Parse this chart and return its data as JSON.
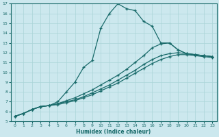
{
  "xlabel": "Humidex (Indice chaleur)",
  "bg_color": "#cce8ee",
  "line_color": "#1a6b6b",
  "grid_color": "#aad4d8",
  "xlim": [
    -0.5,
    23.5
  ],
  "ylim": [
    5,
    17
  ],
  "xticks": [
    0,
    1,
    2,
    3,
    4,
    5,
    6,
    7,
    8,
    9,
    10,
    11,
    12,
    13,
    14,
    15,
    16,
    17,
    18,
    19,
    20,
    21,
    22,
    23
  ],
  "yticks": [
    5,
    6,
    7,
    8,
    9,
    10,
    11,
    12,
    13,
    14,
    15,
    16,
    17
  ],
  "lines": [
    {
      "x": [
        0,
        1,
        2,
        3,
        4,
        5,
        6,
        7,
        8,
        9,
        10,
        11,
        12,
        13,
        14,
        15,
        16,
        17,
        18,
        19,
        20,
        21,
        22,
        23
      ],
      "y": [
        5.5,
        5.8,
        6.2,
        6.5,
        6.6,
        7.0,
        8.0,
        9.0,
        10.5,
        11.2,
        14.5,
        16.0,
        17.0,
        16.5,
        16.3,
        15.2,
        14.7,
        13.0,
        13.0,
        12.3,
        11.9,
        11.8,
        11.7,
        11.6
      ]
    },
    {
      "x": [
        0,
        1,
        2,
        3,
        4,
        5,
        6,
        7,
        8,
        9,
        10,
        11,
        12,
        13,
        14,
        15,
        16,
        17,
        18,
        19,
        20,
        21,
        22,
        23
      ],
      "y": [
        5.5,
        5.8,
        6.2,
        6.5,
        6.6,
        6.8,
        7.1,
        7.4,
        7.8,
        8.2,
        8.7,
        9.2,
        9.7,
        10.3,
        11.0,
        11.7,
        12.5,
        12.9,
        13.0,
        12.3,
        11.9,
        11.8,
        11.7,
        11.6
      ]
    },
    {
      "x": [
        0,
        1,
        2,
        3,
        4,
        5,
        6,
        7,
        8,
        9,
        10,
        11,
        12,
        13,
        14,
        15,
        16,
        17,
        18,
        19,
        20,
        21,
        22,
        23
      ],
      "y": [
        5.5,
        5.8,
        6.2,
        6.5,
        6.6,
        6.8,
        7.0,
        7.2,
        7.5,
        7.9,
        8.3,
        8.7,
        9.2,
        9.7,
        10.2,
        10.8,
        11.3,
        11.7,
        11.9,
        12.0,
        11.9,
        11.8,
        11.7,
        11.6
      ]
    },
    {
      "x": [
        0,
        1,
        2,
        3,
        4,
        5,
        6,
        7,
        8,
        9,
        10,
        11,
        12,
        13,
        14,
        15,
        16,
        17,
        18,
        19,
        20,
        21,
        22,
        23
      ],
      "y": [
        5.5,
        5.8,
        6.2,
        6.5,
        6.6,
        6.7,
        6.9,
        7.1,
        7.4,
        7.7,
        8.1,
        8.5,
        8.9,
        9.4,
        9.9,
        10.4,
        10.9,
        11.3,
        11.6,
        11.8,
        11.8,
        11.7,
        11.6,
        11.5
      ]
    }
  ]
}
